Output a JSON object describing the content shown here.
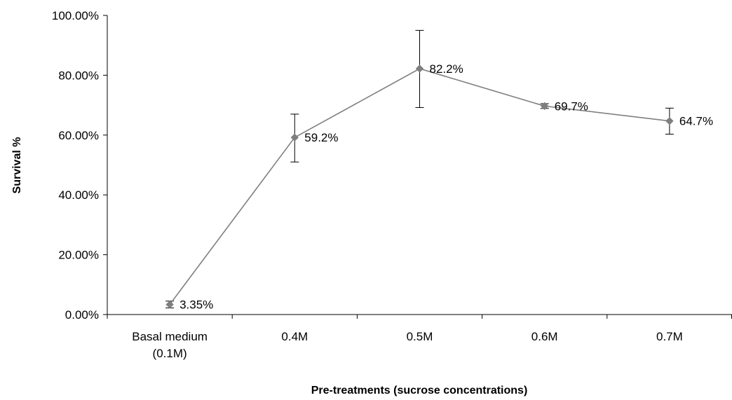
{
  "chart_data": {
    "type": "line",
    "title": "",
    "xlabel": "Pre-treatments (sucrose concentrations)",
    "ylabel": "Survival %",
    "categories": [
      [
        "Basal medium",
        "(0.1M)"
      ],
      [
        "0.4M"
      ],
      [
        "0.5M"
      ],
      [
        "0.6M"
      ],
      [
        "0.7M"
      ]
    ],
    "values": [
      3.35,
      59.2,
      82.2,
      69.7,
      64.7
    ],
    "error_low": [
      2.2,
      51.0,
      69.2,
      68.9,
      60.3
    ],
    "error_high": [
      4.5,
      67.0,
      95.0,
      70.5,
      69.0
    ],
    "data_labels": [
      "3.35%",
      "59.2%",
      "82.2%",
      "69.7%",
      "64.7%"
    ],
    "y_ticks": [
      "0.00%",
      "20.00%",
      "40.00%",
      "60.00%",
      "80.00%",
      "100.00%"
    ],
    "ylim": [
      0,
      100
    ],
    "grid": false,
    "legend": "none",
    "colors": {
      "line": "#7f7f7f",
      "marker": "#7f7f7f",
      "error_bar": "#000000",
      "axis": "#000000"
    }
  }
}
